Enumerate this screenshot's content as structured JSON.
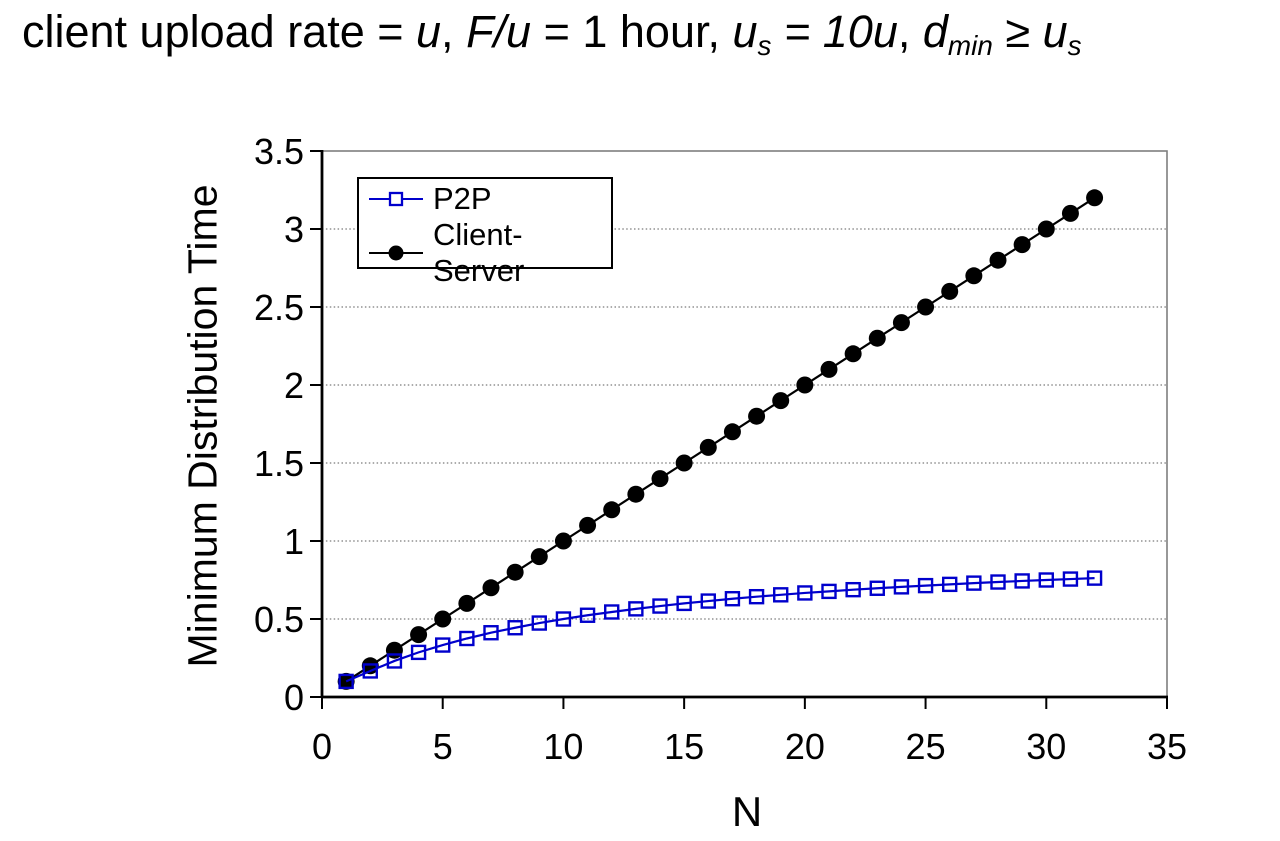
{
  "title": {
    "plain": "client upload rate = u,  F/u = 1 hour,  us = 10u,  dmin ≥ us",
    "segments": [
      {
        "text": "client upload rate = ",
        "style": "normal"
      },
      {
        "text": "u",
        "style": "italic"
      },
      {
        "text": ",  ",
        "style": "normal"
      },
      {
        "text": "F/u",
        "style": "italic"
      },
      {
        "text": " = 1 hour,  ",
        "style": "normal"
      },
      {
        "text": "u",
        "style": "italic"
      },
      {
        "text": "s",
        "style": "subitalic"
      },
      {
        "text": " = 10u",
        "style": "italic"
      },
      {
        "text": ",  ",
        "style": "normal"
      },
      {
        "text": "d",
        "style": "italic"
      },
      {
        "text": "min",
        "style": "subitalic"
      },
      {
        "text": " ≥ ",
        "style": "italic"
      },
      {
        "text": "u",
        "style": "italic"
      },
      {
        "text": "s",
        "style": "subitalic"
      }
    ]
  },
  "chart_data": {
    "type": "line",
    "xlabel": "N",
    "ylabel": "Minimum Distribution Time",
    "xlim": [
      0,
      35
    ],
    "ylim": [
      0,
      3.5
    ],
    "x_ticks": [
      0,
      5,
      10,
      15,
      20,
      25,
      30,
      35
    ],
    "x_tick_labels": [
      "0",
      "5",
      "10",
      "15",
      "20",
      "25",
      "30",
      "35"
    ],
    "y_ticks": [
      0,
      0.5,
      1,
      1.5,
      2,
      2.5,
      3,
      3.5
    ],
    "y_tick_labels": [
      "0",
      "0.5",
      "1",
      "1.5",
      "2",
      "2.5",
      "3",
      "3.5"
    ],
    "grid": "horizontal-dotted",
    "legend_position": "upper-left-inside",
    "x": [
      1,
      2,
      3,
      4,
      5,
      6,
      7,
      8,
      9,
      10,
      11,
      12,
      13,
      14,
      15,
      16,
      17,
      18,
      19,
      20,
      21,
      22,
      23,
      24,
      25,
      26,
      27,
      28,
      29,
      30,
      31,
      32
    ],
    "series": [
      {
        "name": "P2P",
        "color": "#0000CC",
        "marker": "open-square",
        "values": [
          0.1,
          0.167,
          0.231,
          0.286,
          0.333,
          0.375,
          0.412,
          0.444,
          0.474,
          0.5,
          0.524,
          0.545,
          0.565,
          0.583,
          0.6,
          0.615,
          0.63,
          0.643,
          0.655,
          0.667,
          0.677,
          0.688,
          0.697,
          0.706,
          0.714,
          0.722,
          0.73,
          0.737,
          0.744,
          0.75,
          0.756,
          0.762
        ]
      },
      {
        "name": "Client-Server",
        "color": "#000000",
        "marker": "filled-circle",
        "values": [
          0.1,
          0.2,
          0.3,
          0.4,
          0.5,
          0.6,
          0.7,
          0.8,
          0.9,
          1.0,
          1.1,
          1.2,
          1.3,
          1.4,
          1.5,
          1.6,
          1.7,
          1.8,
          1.9,
          2.0,
          2.1,
          2.2,
          2.3,
          2.4,
          2.5,
          2.6,
          2.7,
          2.8,
          2.9,
          3.0,
          3.1,
          3.2
        ]
      }
    ]
  }
}
